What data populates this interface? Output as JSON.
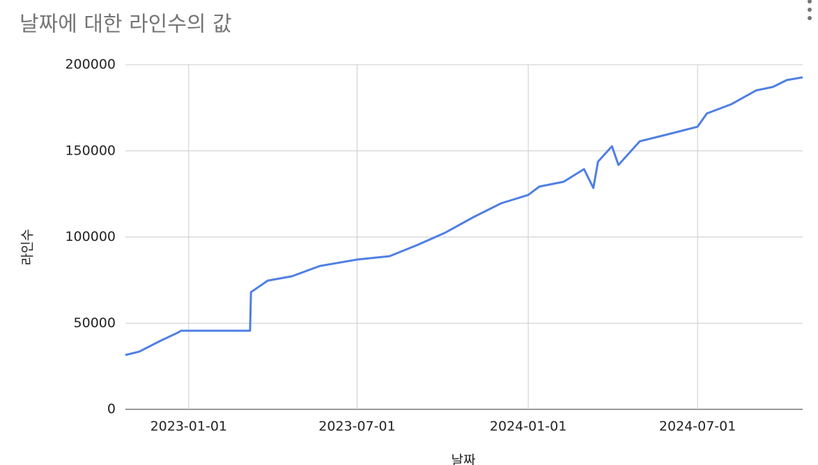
{
  "chart_data": {
    "type": "line",
    "title": "날짜에 대한 라인수의 값",
    "x_label": "날짜",
    "y_label": "라인수",
    "x": [
      "2022-10-25",
      "2022-11-09",
      "2022-12-01",
      "2022-12-20",
      "2022-12-24",
      "2023-03-08",
      "2023-03-09",
      "2023-03-27",
      "2023-04-22",
      "2023-05-22",
      "2023-07-01",
      "2023-08-05",
      "2023-09-04",
      "2023-10-04",
      "2023-11-03",
      "2023-12-03",
      "2024-01-01",
      "2024-01-13",
      "2024-02-08",
      "2024-03-01",
      "2024-03-11",
      "2024-03-16",
      "2024-03-31",
      "2024-04-07",
      "2024-04-30",
      "2024-05-30",
      "2024-07-01",
      "2024-07-11",
      "2024-08-06",
      "2024-09-02",
      "2024-09-20",
      "2024-10-05",
      "2024-10-22"
    ],
    "series": [
      {
        "name": "라인수",
        "color": "#4f7fe3",
        "values": [
          31500,
          33500,
          39600,
          44400,
          45600,
          45600,
          68000,
          74700,
          77200,
          83200,
          86900,
          88900,
          95400,
          102600,
          111500,
          119600,
          124400,
          129300,
          132100,
          139400,
          128500,
          143800,
          152700,
          141800,
          155600,
          159600,
          164000,
          171700,
          177000,
          185100,
          187100,
          191100,
          192700
        ]
      }
    ],
    "xlim": [
      "2022-10-25",
      "2024-10-22"
    ],
    "xticks": [
      "2023-01-01",
      "2023-07-01",
      "2024-01-01",
      "2024-07-01"
    ],
    "ylim": [
      0,
      200000
    ],
    "yticks": [
      0,
      50000,
      100000,
      150000,
      200000
    ],
    "grid": true
  }
}
